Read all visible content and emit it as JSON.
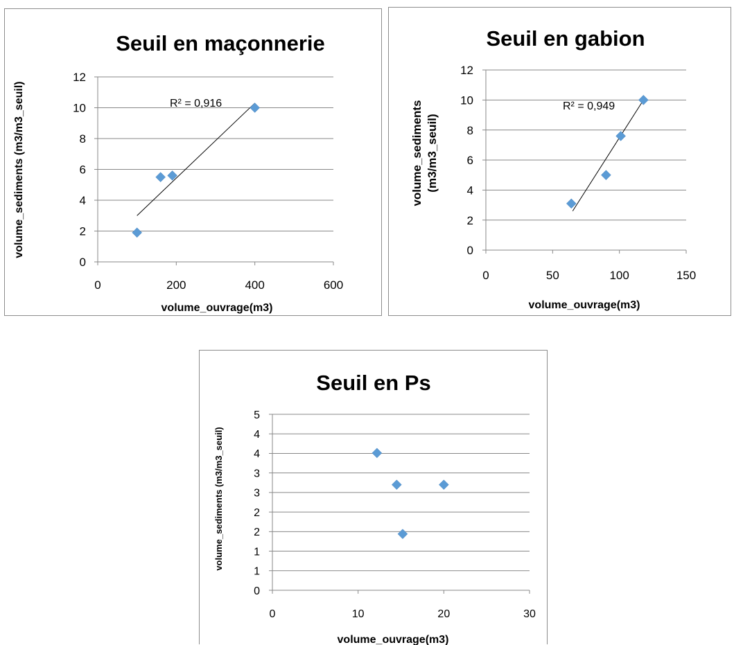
{
  "chart_data": [
    {
      "type": "scatter",
      "title": "Seuil en maçonnerie",
      "xlabel": "volume_ouvrage(m3)",
      "ylabel": "volume_sediments (m3/m3_seuil)",
      "xlim": [
        0,
        600
      ],
      "ylim": [
        0,
        12
      ],
      "x_ticks": [
        "0",
        "200",
        "400",
        "600"
      ],
      "y_ticks": [
        "0",
        "2",
        "4",
        "6",
        "8",
        "10",
        "12"
      ],
      "grid": "horizontal",
      "series": [
        {
          "x": [
            100,
            160,
            190,
            400
          ],
          "y": [
            1.9,
            5.5,
            5.6,
            10.0
          ]
        }
      ],
      "trendline": {
        "x": [
          100,
          400
        ],
        "y": [
          3.0,
          10.3
        ],
        "annotation": "R² = 0,916"
      },
      "marker_color": "#5b9bd5"
    },
    {
      "type": "scatter",
      "title": "Seuil en gabion",
      "xlabel": "volume_ouvrage(m3)",
      "ylabel": "volume_sediments (m3/m3_seuil)",
      "ylabel_lines": [
        "volume_sediments",
        "(m3/m3_seuil)"
      ],
      "xlim": [
        0,
        150
      ],
      "ylim": [
        0,
        12
      ],
      "x_ticks": [
        "0",
        "50",
        "100",
        "150"
      ],
      "y_ticks": [
        "0",
        "2",
        "4",
        "6",
        "8",
        "10",
        "12"
      ],
      "grid": "horizontal",
      "series": [
        {
          "x": [
            64,
            90,
            101,
            118
          ],
          "y": [
            3.1,
            5.0,
            7.6,
            10.0
          ]
        }
      ],
      "trendline": {
        "x": [
          65,
          118
        ],
        "y": [
          2.6,
          10.0
        ],
        "annotation": "R² = 0,949"
      },
      "marker_color": "#5b9bd5"
    },
    {
      "type": "scatter",
      "title": "Seuil en Ps",
      "xlabel": "volume_ouvrage(m3)",
      "ylabel": "volume_sediments (m3/m3_seuil)",
      "xlim": [
        0,
        30
      ],
      "ylim": [
        0,
        5
      ],
      "x_ticks": [
        "0",
        "10",
        "20",
        "30"
      ],
      "y_ticks": [
        "0",
        "1",
        "1",
        "2",
        "2",
        "3",
        "3",
        "4",
        "4",
        "5"
      ],
      "grid": "horizontal",
      "series": [
        {
          "x": [
            12.2,
            14.5,
            20.0,
            15.2
          ],
          "y": [
            3.9,
            3.0,
            3.0,
            1.6
          ]
        }
      ],
      "marker_color": "#5b9bd5"
    }
  ]
}
